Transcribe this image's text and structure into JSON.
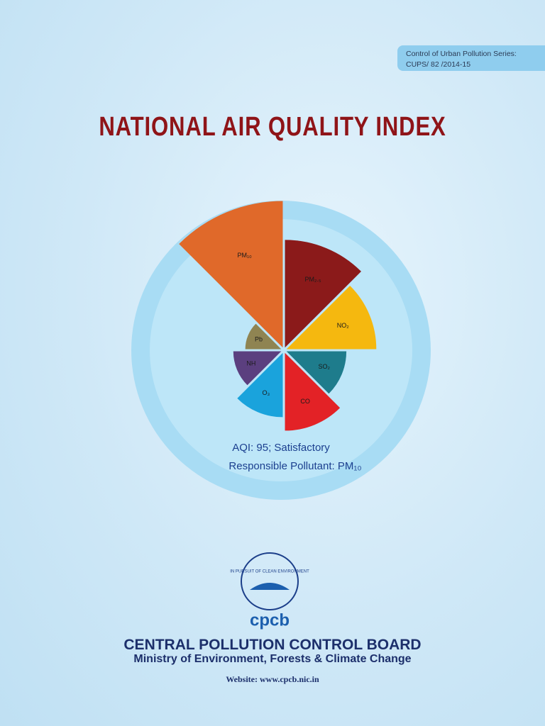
{
  "header": {
    "series": [
      "Control of Urban Pollution Series:",
      "CUPS/ 82 /2014-15"
    ],
    "title": "NATIONAL AIR QUALITY INDEX"
  },
  "chart_data": {
    "type": "polar-area",
    "categories": [
      "PM₂.₅",
      "NO₂",
      "SO₂",
      "CO",
      "O₃",
      "NH",
      "Pb",
      "PM₁₀"
    ],
    "values": [
      72,
      60,
      40,
      52,
      43,
      32,
      24,
      98
    ],
    "colors": [
      "#8b1a1a",
      "#f5b80f",
      "#1e7c8c",
      "#e32226",
      "#1aa3dc",
      "#5b3f7f",
      "#8f8452",
      "#e0692a"
    ],
    "rlim": [
      0,
      100
    ],
    "annotations": [
      "AQI: 95; Satisfactory",
      "Responsible Pollutant: PM₁₀"
    ]
  },
  "logo": {
    "motto": "IN PURSUIT OF CLEAN ENVIRONMENT",
    "name": "cpcb"
  },
  "footer": {
    "organization": "CENTRAL POLLUTION CONTROL BOARD",
    "ministry": "Ministry of Environment, Forests & Climate Change",
    "website": "Website: www.cpcb.nic.in"
  }
}
